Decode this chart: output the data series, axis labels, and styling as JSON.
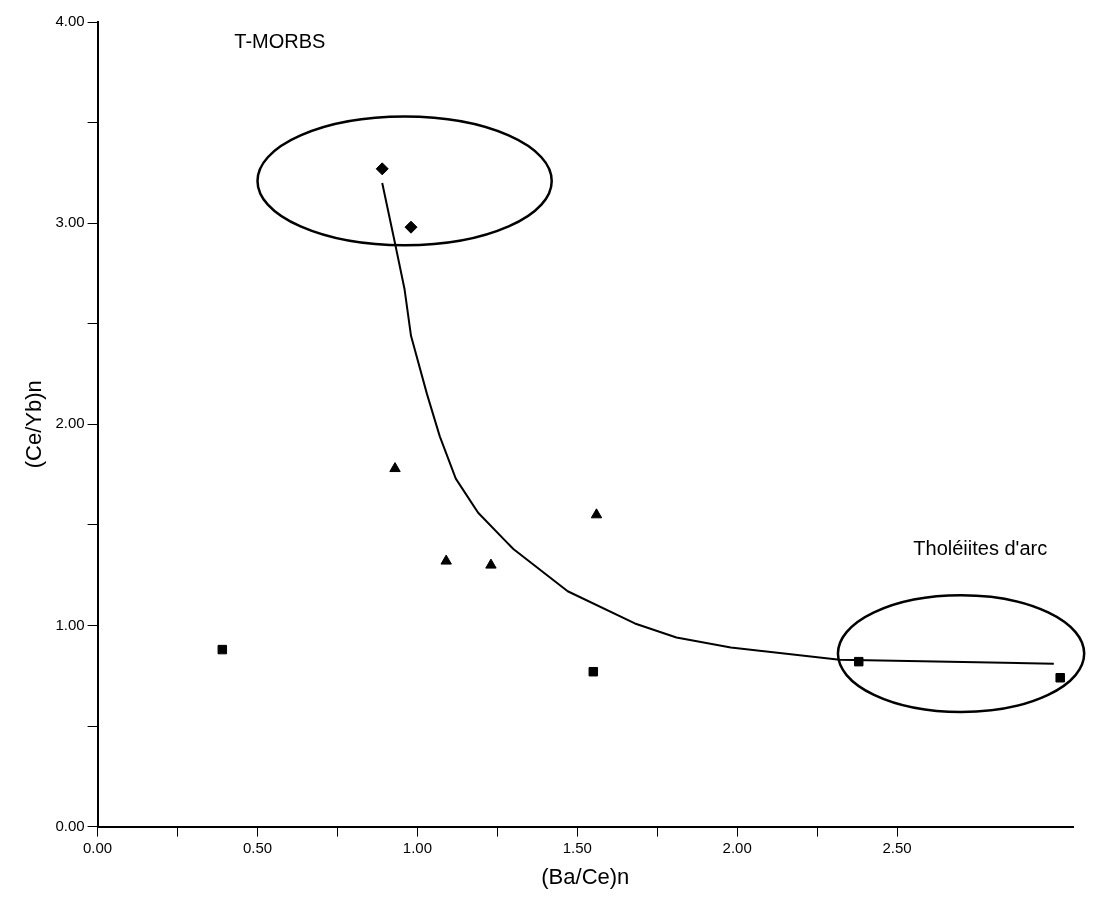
{
  "chart_data": {
    "type": "scatter",
    "xlabel": "(Ba/Ce)n",
    "ylabel": "(Ce/Yb)n",
    "xlim": [
      0,
      3.05
    ],
    "ylim": [
      0,
      4
    ],
    "xticks": [
      {
        "value": 0,
        "label": "0.00"
      },
      {
        "value": 0.25,
        "label": null
      },
      {
        "value": 0.5,
        "label": "0.50"
      },
      {
        "value": 0.75,
        "label": null
      },
      {
        "value": 1,
        "label": "1.00"
      },
      {
        "value": 1.25,
        "label": null
      },
      {
        "value": 1.5,
        "label": "1.50"
      },
      {
        "value": 1.75,
        "label": null
      },
      {
        "value": 2,
        "label": "2.00"
      },
      {
        "value": 2.25,
        "label": null
      },
      {
        "value": 2.5,
        "label": "2.50"
      }
    ],
    "yticks": [
      {
        "value": 0,
        "label": "0.00"
      },
      {
        "value": 0.5,
        "label": null
      },
      {
        "value": 1,
        "label": "1.00"
      },
      {
        "value": 1.5,
        "label": null
      },
      {
        "value": 2,
        "label": "2.00"
      },
      {
        "value": 2.5,
        "label": null
      },
      {
        "value": 3,
        "label": "3.00"
      },
      {
        "value": 3.5,
        "label": null
      },
      {
        "value": 4,
        "label": "4.00"
      }
    ],
    "grid": false,
    "legend": false,
    "series": [
      {
        "type": "scatter",
        "marker": "diamond",
        "color": "#000000",
        "x": [
          0.89,
          0.98
        ],
        "values": [
          3.27,
          2.98
        ]
      },
      {
        "type": "scatter",
        "marker": "triangle",
        "color": "#000000",
        "x": [
          0.93,
          1.09,
          1.23,
          1.56
        ],
        "values": [
          1.78,
          1.32,
          1.3,
          1.55
        ]
      },
      {
        "type": "scatter",
        "marker": "square",
        "color": "#000000",
        "x": [
          0.39,
          1.55,
          2.38,
          3.01
        ],
        "values": [
          0.88,
          0.77,
          0.82,
          0.74
        ]
      },
      {
        "type": "line",
        "marker": "none",
        "color": "#000000",
        "x": [
          0.89,
          0.93,
          0.96,
          0.98,
          1.03,
          1.07,
          1.12,
          1.19,
          1.3,
          1.47,
          1.68,
          1.81,
          1.98,
          2.32,
          2.99
        ],
        "values": [
          3.2,
          2.9,
          2.67,
          2.44,
          2.15,
          1.94,
          1.73,
          1.56,
          1.38,
          1.17,
          1.01,
          0.94,
          0.89,
          0.83,
          0.81
        ]
      }
    ],
    "annotations": [
      "T-MORBS",
      "Tholéiites d'arc"
    ]
  }
}
